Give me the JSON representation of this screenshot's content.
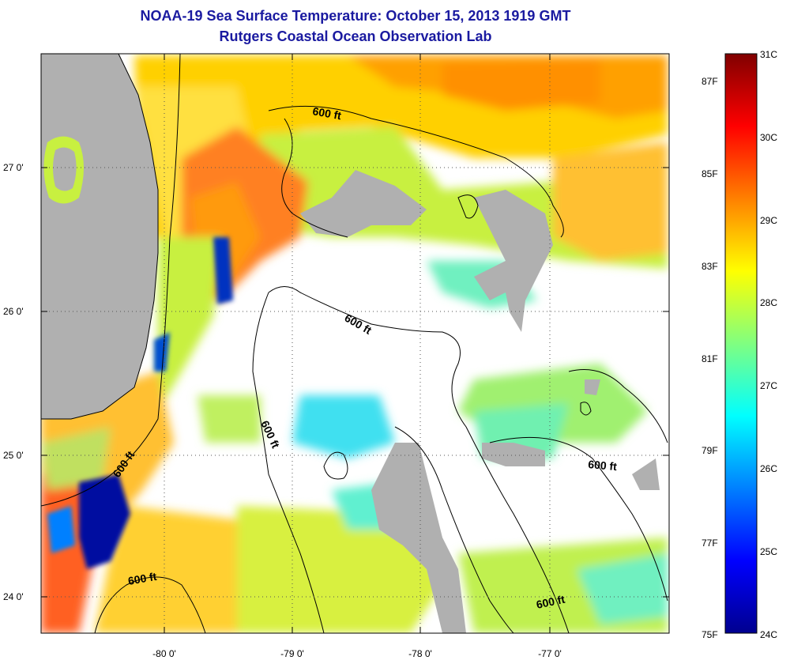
{
  "title": "NOAA-19 Sea Surface Temperature:  October 15, 2013 1919 GMT",
  "subtitle": "Rutgers Coastal Ocean Observation Lab",
  "y_ticks": [
    "27 0'",
    "26 0'",
    "25 0'",
    "24 0'"
  ],
  "x_ticks": [
    "-80 0'",
    "-79 0'",
    "-78 0'",
    "-77 0'"
  ],
  "contour_label": "600 ft",
  "colorbar": {
    "fahrenheit": [
      "87F",
      "85F",
      "83F",
      "81F",
      "79F",
      "77F",
      "75F"
    ],
    "celsius": [
      "31C",
      "30C",
      "29C",
      "28C",
      "27C",
      "26C",
      "25C",
      "24C"
    ],
    "colors": [
      "#00008f",
      "#0000ff",
      "#0080ff",
      "#00ffff",
      "#80ff80",
      "#ffff00",
      "#ff8000",
      "#ff0000",
      "#800000"
    ]
  },
  "map": {
    "land_color": "#b0b0b0",
    "no_data_color": "#ffffff",
    "latitude_range": [
      23.8,
      27.8
    ],
    "longitude_range": [
      -80.9,
      -76.2
    ]
  }
}
